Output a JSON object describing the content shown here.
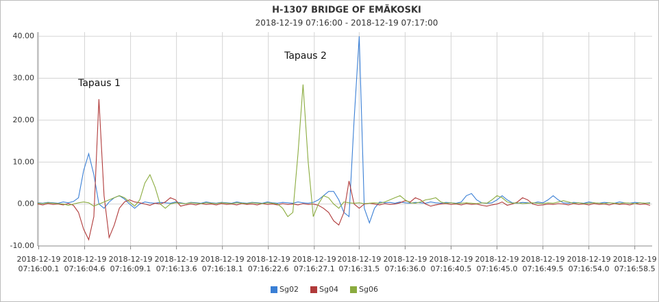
{
  "chart_data": {
    "type": "line",
    "title": "H-1307 BRIDGE OF EMÄKOSKI",
    "subtitle": "2018-12-19 07:16:00 - 2018-12-19 07:17:00",
    "annotations": [
      {
        "text": "Tapaus 1"
      },
      {
        "text": "Tapaus 2"
      }
    ],
    "x": [
      0,
      0.5,
      1,
      1.5,
      2,
      2.5,
      3,
      3.5,
      4,
      4.5,
      5,
      5.5,
      6,
      6.5,
      7,
      7.5,
      8,
      8.5,
      9,
      9.5,
      10,
      10.5,
      11,
      11.5,
      12,
      12.5,
      13,
      13.5,
      14,
      14.5,
      15,
      15.5,
      16,
      16.5,
      17,
      17.5,
      18,
      18.5,
      19,
      19.5,
      20,
      20.5,
      21,
      21.5,
      22,
      22.5,
      23,
      23.5,
      24,
      24.5,
      25,
      25.5,
      26,
      26.5,
      27,
      27.5,
      28,
      28.5,
      29,
      29.5,
      30,
      30.5,
      31,
      31.5,
      32,
      32.5,
      33,
      33.5,
      34,
      34.5,
      35,
      35.5,
      36,
      36.5,
      37,
      37.5,
      38,
      38.5,
      39,
      39.5,
      40,
      40.5,
      41,
      41.5,
      42,
      42.5,
      43,
      43.5,
      44,
      44.5,
      45,
      45.5,
      46,
      46.5,
      47,
      47.5,
      48,
      48.5,
      49,
      49.5,
      50,
      50.5,
      51,
      51.5,
      52,
      52.5,
      53,
      53.5,
      54,
      54.5,
      55,
      55.5,
      56,
      56.5,
      57,
      57.5,
      58,
      58.5,
      59,
      59.5,
      60
    ],
    "series": [
      {
        "name": "Sg02",
        "color": "#3a7fd5",
        "values": [
          0.3,
          0.2,
          0.4,
          0.3,
          0.2,
          0.5,
          0.3,
          0.6,
          1.5,
          8,
          12,
          7,
          0,
          -1,
          0.5,
          1.5,
          2,
          1.2,
          0,
          -1,
          0,
          0.5,
          0.3,
          0.2,
          0.4,
          0.3,
          0.2,
          0.5,
          0.3,
          0.1,
          0.4,
          0.3,
          0.2,
          0.5,
          0.3,
          0.2,
          0.4,
          0.3,
          0.2,
          0.5,
          0.3,
          0.2,
          0.4,
          0.3,
          0.2,
          0.5,
          0.3,
          0.2,
          0.4,
          0.3,
          0.2,
          0.5,
          0.3,
          0.2,
          0.4,
          1,
          2,
          3,
          3,
          1,
          -2,
          -3,
          20,
          40,
          -1,
          -4.5,
          -1,
          0.5,
          0.3,
          0.4,
          0.2,
          0.5,
          0.3,
          0.2,
          0.4,
          0.3,
          0.2,
          0.5,
          0.3,
          0.2,
          0.4,
          0.3,
          0.2,
          0.5,
          2,
          2.5,
          1,
          0.3,
          0.2,
          0.3,
          1,
          2,
          1,
          0.3,
          0.2,
          0.4,
          0.3,
          0.2,
          0.5,
          0.3,
          1,
          2,
          1,
          0.3,
          0.2,
          0.4,
          0.3,
          0.2,
          0.5,
          0.3,
          0.2,
          0.4,
          0.3,
          0.2,
          0.5,
          0.3,
          0.2,
          0.4,
          0.3,
          0.2,
          0.3
        ]
      },
      {
        "name": "Sg04",
        "color": "#b03a3a",
        "values": [
          0,
          -0.2,
          0.1,
          -0.1,
          0,
          -0.2,
          0.1,
          -0.3,
          -2,
          -6,
          -8.5,
          -3,
          25,
          2,
          -8,
          -5,
          -1,
          0.5,
          1,
          0.5,
          0.3,
          0,
          -0.3,
          0.2,
          0,
          0.5,
          1.5,
          1,
          -0.5,
          -0.2,
          0,
          -0.2,
          0.1,
          -0.1,
          0,
          -0.2,
          0.1,
          -0.1,
          0,
          -0.2,
          0.1,
          -0.1,
          0,
          -0.2,
          0.1,
          -0.1,
          0,
          -0.2,
          0.1,
          -0.1,
          0,
          -0.2,
          0.1,
          -0.1,
          0,
          -0.3,
          -1,
          -2,
          -4,
          -5,
          -2,
          5.5,
          0,
          -1,
          0,
          0.2,
          0,
          -0.2,
          0.1,
          -0.1,
          0,
          0.3,
          0.8,
          0.5,
          1.5,
          1,
          0,
          -0.5,
          -0.2,
          0,
          0.1,
          -0.1,
          0,
          -0.2,
          0.1,
          -0.1,
          0,
          -0.3,
          -0.5,
          -0.2,
          0,
          0.5,
          -0.3,
          0,
          0.5,
          1.5,
          1,
          0,
          -0.3,
          -0.2,
          0,
          -0.1,
          0.1,
          0,
          -0.2,
          0.1,
          -0.1,
          0,
          -0.2,
          0.1,
          -0.1,
          0,
          -0.2,
          0.1,
          -0.1,
          0,
          -0.2,
          0.1,
          -0.1,
          0,
          -0.3
        ]
      },
      {
        "name": "Sg06",
        "color": "#8aab3e",
        "values": [
          0.2,
          0.1,
          0.3,
          0.2,
          0.1,
          0,
          -0.3,
          0,
          0.3,
          0.5,
          0.3,
          -0.5,
          0,
          0.5,
          1,
          1.5,
          2,
          1.5,
          0.5,
          -0.5,
          1,
          5,
          7,
          4,
          0,
          -1,
          0,
          0.3,
          0.2,
          0.1,
          0.3,
          0.2,
          0.1,
          0.3,
          0.2,
          0.1,
          0.3,
          0.2,
          0.1,
          0.3,
          0.2,
          0.1,
          0.3,
          0.2,
          0.1,
          0.3,
          0.2,
          0,
          -1,
          -3,
          -2,
          12,
          28.5,
          10,
          -3,
          0,
          2,
          1.5,
          0,
          -1,
          0.5,
          0.3,
          0.2,
          0.3,
          0.1,
          0.2,
          0.3,
          0.2,
          0.5,
          1,
          1.5,
          2,
          1,
          0.3,
          0.2,
          0.5,
          1,
          1.2,
          1.5,
          0.5,
          0.2,
          0.3,
          0.1,
          0.2,
          0.3,
          0.2,
          0.1,
          0.3,
          0.2,
          1,
          2,
          1.5,
          0.5,
          0.2,
          0.3,
          0.1,
          0.2,
          0.3,
          0.2,
          0.1,
          0.3,
          0.2,
          0.5,
          0.8,
          0.5,
          0.2,
          0.3,
          0.1,
          0.2,
          0.3,
          0.2,
          0.1,
          0.3,
          0.2,
          0.1,
          0.3,
          0.2,
          0.1,
          0.3,
          0.2,
          0.2
        ]
      }
    ],
    "xlim": [
      0,
      60.2
    ],
    "xticks": [
      {
        "value": 0.1,
        "label": "2018-12-19\n07:16:00.1"
      },
      {
        "value": 4.6,
        "label": "2018-12-19\n07:16:04.6"
      },
      {
        "value": 9.1,
        "label": "2018-12-19\n07:16:09.1"
      },
      {
        "value": 13.6,
        "label": "2018-12-19\n07:16:13.6"
      },
      {
        "value": 18.1,
        "label": "2018-12-19\n07:16:18.1"
      },
      {
        "value": 22.6,
        "label": "2018-12-19\n07:16:22.6"
      },
      {
        "value": 27.1,
        "label": "2018-12-19\n07:16:27.1"
      },
      {
        "value": 31.5,
        "label": "2018-12-19\n07:16:31.5"
      },
      {
        "value": 36.0,
        "label": "2018-12-19\n07:16:36.0"
      },
      {
        "value": 40.5,
        "label": "2018-12-19\n07:16:40.5"
      },
      {
        "value": 45.0,
        "label": "2018-12-19\n07:16:45.0"
      },
      {
        "value": 49.5,
        "label": "2018-12-19\n07:16:49.5"
      },
      {
        "value": 54.0,
        "label": "2018-12-19\n07:16:54.0"
      },
      {
        "value": 58.5,
        "label": "2018-12-19\n07:16:58.5"
      }
    ],
    "ylim": [
      -10,
      41
    ],
    "yticks": [
      {
        "value": -10,
        "label": "-10.00"
      },
      {
        "value": 0,
        "label": "0.00"
      },
      {
        "value": 10,
        "label": "10.00"
      },
      {
        "value": 20,
        "label": "20.00"
      },
      {
        "value": 30,
        "label": "30.00"
      },
      {
        "value": 40,
        "label": "40.00"
      }
    ],
    "grid": true,
    "legend": "bottom"
  }
}
